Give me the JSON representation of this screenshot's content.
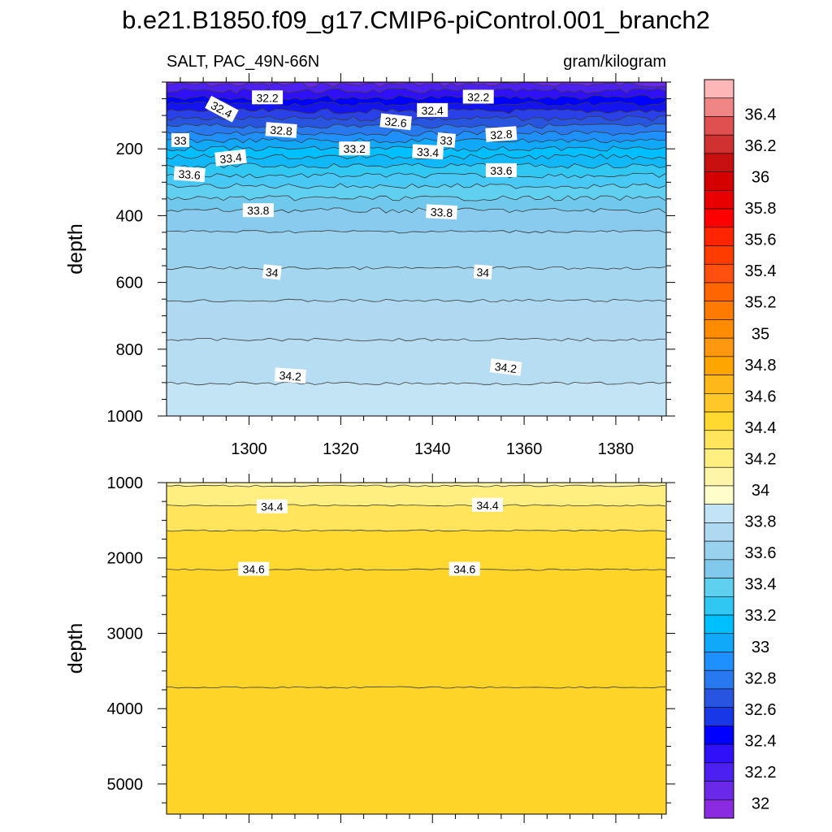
{
  "title": "b.e21.B1850.f09_g17.CMIP6-piControl.001_branch2",
  "chart_data": {
    "type": "heatmap",
    "variable": "SALT, PAC_49N-66N",
    "units": "gram/kilogram",
    "colorbar": {
      "labels": [
        "32",
        "32.2",
        "32.4",
        "32.6",
        "32.8",
        "33",
        "33.2",
        "33.4",
        "33.6",
        "33.8",
        "34",
        "34.2",
        "34.4",
        "34.6",
        "34.8",
        "35",
        "35.2",
        "35.4",
        "35.6",
        "35.8",
        "36",
        "36.2",
        "36.4"
      ],
      "colors": [
        "#8a2be2",
        "#6a28e8",
        "#4b20f0",
        "#3010f8",
        "#0000ff",
        "#1838e8",
        "#2855e0",
        "#2878f0",
        "#1e90ff",
        "#10a8f8",
        "#00bfff",
        "#30c8f2",
        "#60d0f0",
        "#80c8ec",
        "#98d2ef",
        "#aed9f1",
        "#c2e4f5",
        "#ffffcc",
        "#fff5a8",
        "#ffee80",
        "#ffe45c",
        "#ffd830",
        "#ffc828",
        "#ffb81a",
        "#ffa500",
        "#ff9810",
        "#ff8c00",
        "#ff7a00",
        "#ff6600",
        "#ff5010",
        "#ff3c00",
        "#ff2500",
        "#ff0000",
        "#e80000",
        "#d40000",
        "#c81010",
        "#d03030",
        "#e05050",
        "#f08585",
        "#ffb6b6"
      ]
    },
    "panels": [
      {
        "name": "upper",
        "ylabel": "depth",
        "ylim": [
          0,
          1000
        ],
        "yticks": [
          "200",
          "400",
          "600",
          "800",
          "1000"
        ],
        "xlim": [
          1282,
          1391
        ],
        "xticks": [
          "1300",
          "1320",
          "1340",
          "1360",
          "1380"
        ],
        "contour_labels": [
          {
            "text": "32.2",
            "x": 1304,
            "y": 47
          },
          {
            "text": "32.4",
            "x": 1294,
            "y": 82
          },
          {
            "text": "32.8",
            "x": 1307,
            "y": 145
          },
          {
            "text": "33",
            "x": 1285,
            "y": 175
          },
          {
            "text": "33.4",
            "x": 1296,
            "y": 228
          },
          {
            "text": "33.6",
            "x": 1287,
            "y": 277
          },
          {
            "text": "33.8",
            "x": 1302,
            "y": 385
          },
          {
            "text": "34",
            "x": 1305,
            "y": 570
          },
          {
            "text": "34.2",
            "x": 1309,
            "y": 880
          },
          {
            "text": "32.4",
            "x": 1340,
            "y": 85
          },
          {
            "text": "32.6",
            "x": 1332,
            "y": 120
          },
          {
            "text": "33.2",
            "x": 1323,
            "y": 200
          },
          {
            "text": "33.4",
            "x": 1339,
            "y": 210
          },
          {
            "text": "33",
            "x": 1343,
            "y": 175
          },
          {
            "text": "32.2",
            "x": 1350,
            "y": 45
          },
          {
            "text": "32.8",
            "x": 1355,
            "y": 157
          },
          {
            "text": "33.6",
            "x": 1355,
            "y": 265
          },
          {
            "text": "33.8",
            "x": 1342,
            "y": 390
          },
          {
            "text": "34",
            "x": 1351,
            "y": 570
          },
          {
            "text": "34.2",
            "x": 1356,
            "y": 855
          }
        ]
      },
      {
        "name": "lower",
        "ylabel": "depth",
        "ylim": [
          1000,
          5400
        ],
        "yticks": [
          "1000",
          "2000",
          "3000",
          "4000",
          "5000"
        ],
        "xlim": [
          1282,
          1391
        ],
        "contour_labels": [
          {
            "text": "34.4",
            "x": 1305,
            "y": 1320
          },
          {
            "text": "34.4",
            "x": 1352,
            "y": 1300
          },
          {
            "text": "34.6",
            "x": 1301,
            "y": 2150
          },
          {
            "text": "34.6",
            "x": 1347,
            "y": 2150
          }
        ]
      }
    ]
  }
}
